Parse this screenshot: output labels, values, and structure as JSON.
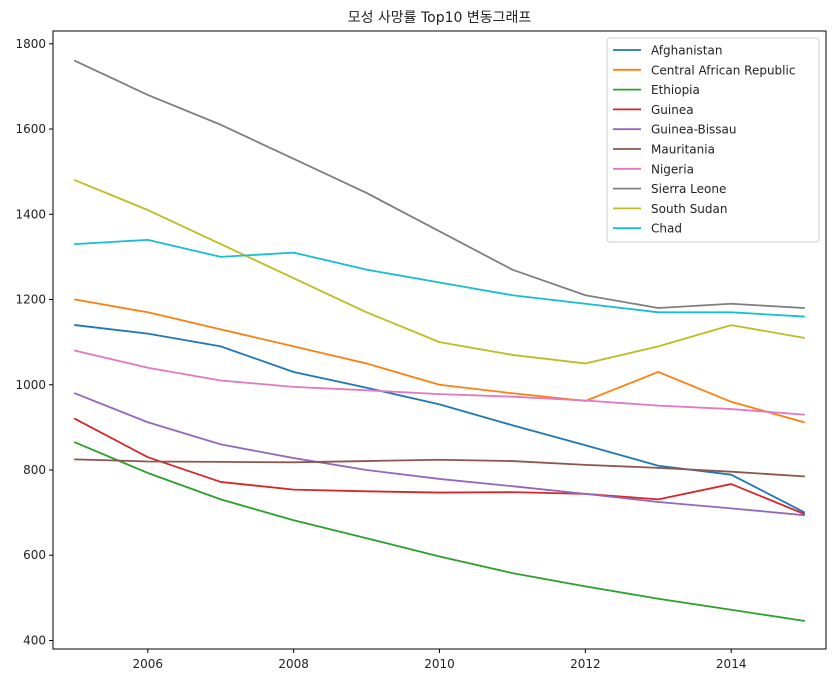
{
  "chart_data": {
    "type": "line",
    "title": "모성 사망률 Top10 변동그래프",
    "xlabel": "",
    "ylabel": "",
    "xlim": [
      2004.7,
      2015.3
    ],
    "ylim": [
      380,
      1830
    ],
    "xticks": [
      2006,
      2008,
      2010,
      2012,
      2014
    ],
    "yticks": [
      400,
      600,
      800,
      1000,
      1200,
      1400,
      1600,
      1800
    ],
    "grid": false,
    "legend_position": "top-right",
    "x": [
      2005,
      2006,
      2007,
      2008,
      2009,
      2010,
      2011,
      2012,
      2013,
      2014,
      2015
    ],
    "series": [
      {
        "name": "Afghanistan",
        "color": "#1f77b4",
        "values": [
          1140,
          1120,
          1090,
          1030,
          993,
          954,
          905,
          858,
          810,
          789,
          701
        ]
      },
      {
        "name": "Central African Republic",
        "color": "#ff7f0e",
        "values": [
          1200,
          1170,
          1130,
          1090,
          1050,
          1000,
          980,
          962,
          1030,
          960,
          912
        ]
      },
      {
        "name": "Ethiopia",
        "color": "#2ca02c",
        "values": [
          865,
          793,
          731,
          682,
          640,
          597,
          558,
          527,
          498,
          472,
          446
        ]
      },
      {
        "name": "Guinea",
        "color": "#d62728",
        "values": [
          920,
          830,
          772,
          754,
          750,
          747,
          748,
          744,
          731,
          767,
          697
        ]
      },
      {
        "name": "Guinea-Bissau",
        "color": "#9467bd",
        "values": [
          980,
          912,
          860,
          828,
          800,
          779,
          762,
          744,
          725,
          710,
          694
        ]
      },
      {
        "name": "Mauritania",
        "color": "#8c564b",
        "values": [
          825,
          820,
          819,
          818,
          821,
          824,
          821,
          812,
          805,
          796,
          785
        ]
      },
      {
        "name": "Nigeria",
        "color": "#e377c2",
        "values": [
          1080,
          1040,
          1010,
          995,
          987,
          978,
          972,
          963,
          951,
          943,
          930
        ]
      },
      {
        "name": "Sierra Leone",
        "color": "#7f7f7f",
        "values": [
          1760,
          1680,
          1610,
          1530,
          1450,
          1360,
          1270,
          1210,
          1180,
          1190,
          1180
        ]
      },
      {
        "name": "South Sudan",
        "color": "#bcbd22",
        "values": [
          1480,
          1410,
          1330,
          1250,
          1170,
          1100,
          1070,
          1050,
          1090,
          1140,
          1110
        ]
      },
      {
        "name": "Chad",
        "color": "#17becf",
        "values": [
          1330,
          1340,
          1300,
          1310,
          1270,
          1240,
          1210,
          1190,
          1170,
          1170,
          1160
        ]
      }
    ]
  }
}
